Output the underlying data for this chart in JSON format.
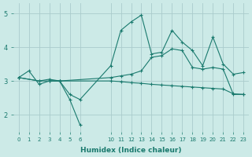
{
  "background_color": "#cceae7",
  "grid_color": "#aacccc",
  "line_color": "#1a7a6e",
  "xlabel": "Humidex (Indice chaleur)",
  "yticks": [
    2,
    3,
    4,
    5
  ],
  "ylim": [
    1.5,
    5.3
  ],
  "xlim": [
    -0.3,
    23.3
  ],
  "left_ticks": [
    0,
    1,
    2,
    3,
    4,
    5,
    6
  ],
  "right_ticks": [
    10,
    11,
    12,
    13,
    14,
    15,
    16,
    17,
    18,
    19,
    20,
    21,
    22,
    23
  ],
  "x_remap": {
    "0": 0,
    "1": 1,
    "2": 2,
    "3": 3,
    "4": 4,
    "5": 5,
    "6": 6,
    "10": 9,
    "11": 10,
    "12": 11,
    "13": 12,
    "14": 13,
    "15": 14,
    "16": 15,
    "17": 16,
    "18": 17,
    "19": 18,
    "20": 19,
    "21": 20,
    "22": 21,
    "23": 22
  },
  "tick_positions": [
    0,
    1,
    2,
    3,
    4,
    5,
    6,
    9,
    10,
    11,
    12,
    13,
    14,
    15,
    16,
    17,
    18,
    19,
    20,
    21,
    22
  ],
  "tick_labels": [
    "0",
    "1",
    "2",
    "3",
    "4",
    "5",
    "6",
    "10",
    "11",
    "12",
    "13",
    "14",
    "15",
    "16",
    "17",
    "18",
    "19",
    "20",
    "21",
    "22",
    "23"
  ],
  "lines": [
    {
      "x": [
        0,
        1,
        2,
        3,
        4,
        5,
        6,
        10,
        11,
        12,
        13,
        14,
        15,
        16,
        17,
        18,
        19,
        20,
        21,
        22,
        23
      ],
      "y": [
        3.1,
        3.3,
        2.9,
        3.0,
        3.0,
        2.6,
        2.45,
        3.45,
        4.5,
        4.75,
        4.95,
        3.8,
        3.85,
        4.5,
        4.15,
        3.9,
        3.45,
        4.3,
        3.5,
        3.2,
        3.25
      ]
    },
    {
      "x": [
        0,
        2,
        3,
        4,
        10,
        11,
        12,
        13,
        14,
        15,
        16,
        17,
        18,
        19,
        20,
        21,
        22,
        23
      ],
      "y": [
        3.1,
        3.0,
        3.05,
        3.0,
        3.1,
        3.15,
        3.2,
        3.3,
        3.7,
        3.75,
        3.95,
        3.9,
        3.4,
        3.35,
        3.4,
        3.35,
        2.6,
        2.6
      ]
    },
    {
      "x": [
        0,
        2,
        3,
        4,
        10,
        11,
        12,
        13,
        14,
        15,
        16,
        17,
        18,
        19,
        20,
        21,
        22,
        23
      ],
      "y": [
        3.1,
        3.0,
        3.0,
        3.0,
        3.0,
        2.98,
        2.95,
        2.93,
        2.9,
        2.88,
        2.86,
        2.84,
        2.82,
        2.8,
        2.78,
        2.76,
        2.62,
        2.6
      ]
    },
    {
      "x": [
        3,
        4,
        5,
        6
      ],
      "y": [
        3.0,
        3.0,
        2.45,
        1.7
      ]
    }
  ]
}
